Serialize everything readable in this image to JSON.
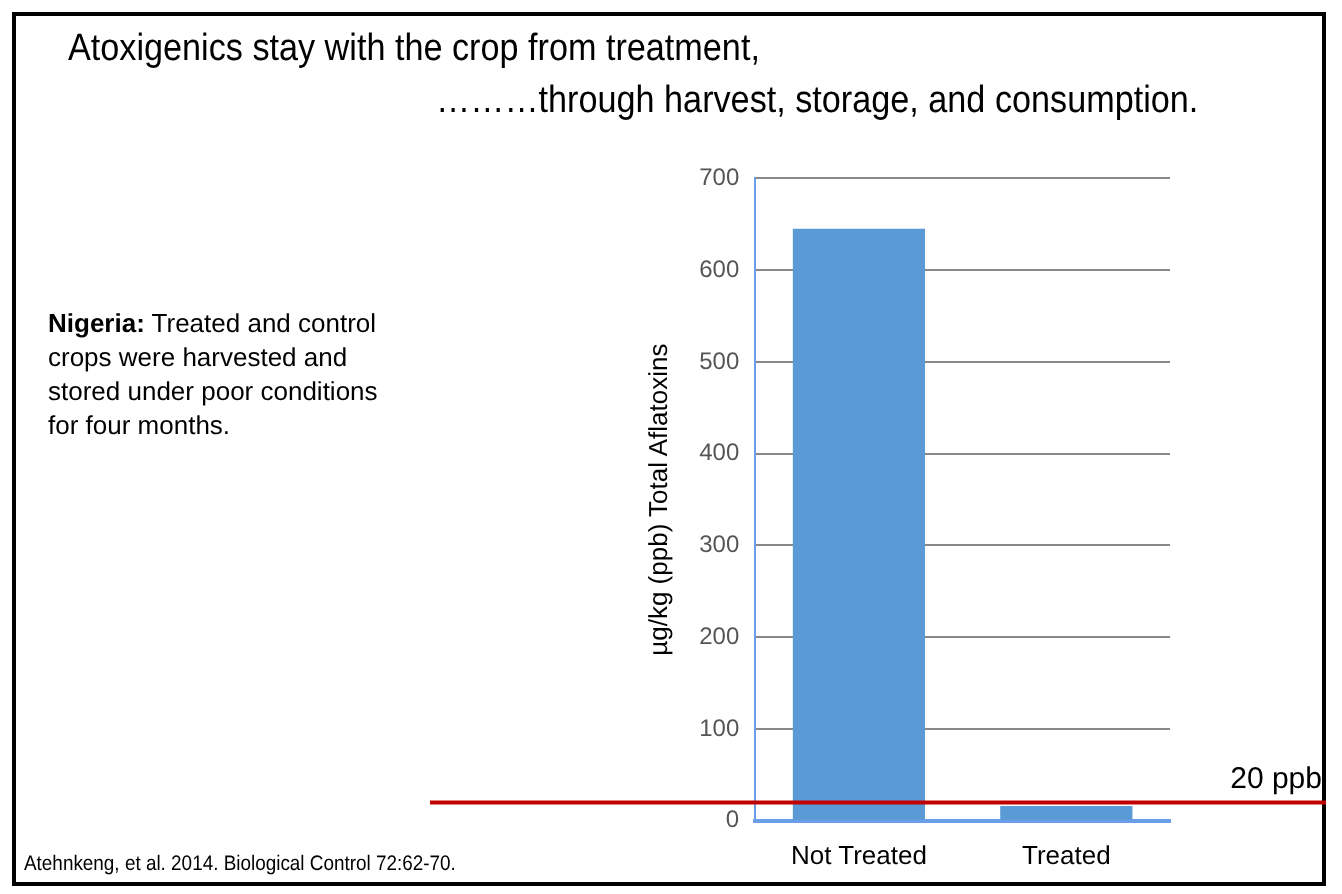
{
  "chart_data": {
    "type": "bar",
    "title": "Atoxigenics stay with the crop from treatment,",
    "subtitle": "………through harvest, storage, and consumption.",
    "ylabel": "µg/kg (ppb) Total Aflatoxins",
    "categories": [
      "Not Treated",
      "Treated"
    ],
    "values": [
      645,
      16
    ],
    "color": "#5b9bd5",
    "ylim": [
      0,
      700
    ],
    "yticks": [
      0,
      100,
      200,
      300,
      400,
      500,
      600,
      700
    ],
    "grid": "y",
    "legend": false,
    "ref_lines": [
      {
        "axis": "y",
        "value": 20,
        "label": "20 ppb",
        "color": "#c00000"
      }
    ],
    "annotations": [
      "Nigeria: Treated and control crops were harvested and stored under poor conditions for four months.",
      "Atehnkeng, et al. 2014. Biological Control 72:62-70."
    ]
  }
}
